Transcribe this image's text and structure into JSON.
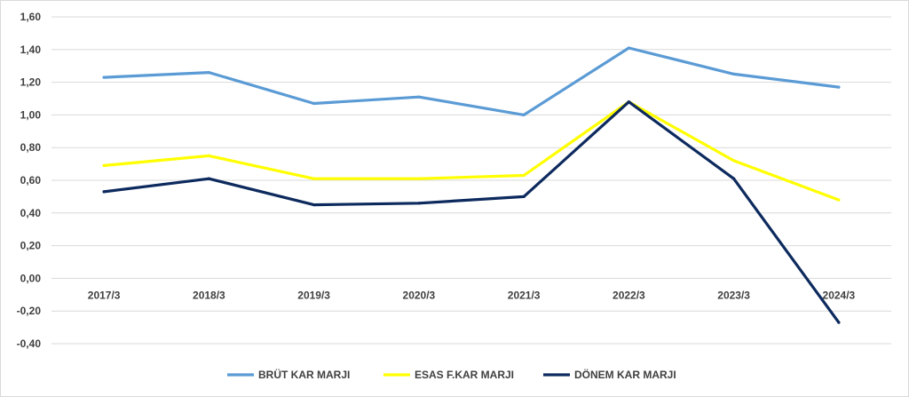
{
  "chart_data": {
    "type": "line",
    "title": "",
    "xlabel": "",
    "ylabel": "",
    "categories": [
      "2017/3",
      "2018/3",
      "2019/3",
      "2020/3",
      "2021/3",
      "2022/3",
      "2023/3",
      "2024/3"
    ],
    "ylim": [
      -0.4,
      1.6
    ],
    "yticks": [
      "-0,40",
      "-0,20",
      "0,00",
      "0,20",
      "0,40",
      "0,60",
      "0,80",
      "1,00",
      "1,20",
      "1,40",
      "1,60"
    ],
    "grid": true,
    "legend_position": "bottom",
    "series": [
      {
        "name": "BRÜT KAR MARJI",
        "color": "#5b9bd5",
        "values": [
          1.23,
          1.26,
          1.07,
          1.11,
          1.0,
          1.41,
          1.25,
          1.17
        ]
      },
      {
        "name": "ESAS F.KAR MARJI",
        "color": "#ffff00",
        "values": [
          0.69,
          0.75,
          0.61,
          0.61,
          0.63,
          1.08,
          0.72,
          0.48
        ]
      },
      {
        "name": "DÖNEM KAR MARJI",
        "color": "#0d2a5e",
        "values": [
          0.53,
          0.61,
          0.45,
          0.46,
          0.5,
          1.08,
          0.61,
          -0.27
        ]
      }
    ]
  }
}
